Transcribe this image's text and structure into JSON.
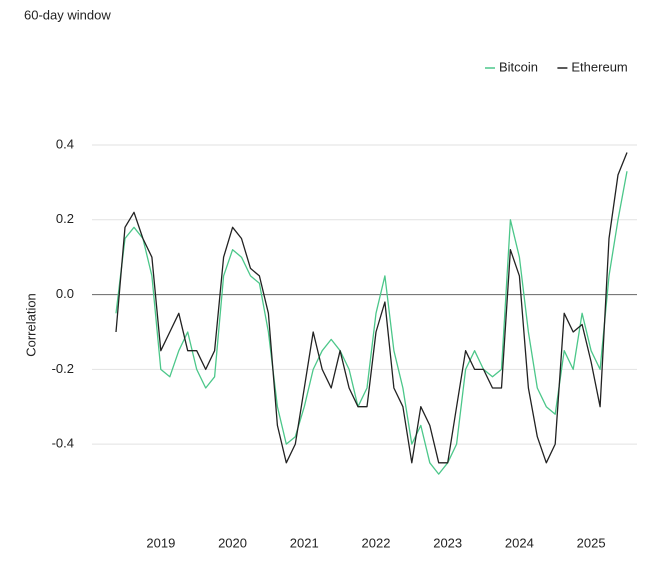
{
  "chart_data": {
    "type": "line",
    "subtitle": "60-day window",
    "y_label": "Correlation",
    "x": [
      2018.375,
      2018.5,
      2018.625,
      2018.75,
      2018.875,
      2019.0,
      2019.125,
      2019.25,
      2019.375,
      2019.5,
      2019.625,
      2019.75,
      2019.875,
      2020.0,
      2020.125,
      2020.25,
      2020.375,
      2020.5,
      2020.625,
      2020.75,
      2020.875,
      2021.0,
      2021.125,
      2021.25,
      2021.375,
      2021.5,
      2021.625,
      2021.75,
      2021.875,
      2022.0,
      2022.125,
      2022.25,
      2022.375,
      2022.5,
      2022.625,
      2022.75,
      2022.875,
      2023.0,
      2023.125,
      2023.25,
      2023.375,
      2023.5,
      2023.625,
      2023.75,
      2023.875,
      2024.0,
      2024.125,
      2024.25,
      2024.375,
      2024.5,
      2024.625,
      2024.75,
      2024.875,
      2025.0,
      2025.125,
      2025.25,
      2025.375,
      2025.5
    ],
    "series": [
      {
        "name": "Bitcoin",
        "color": "#4cc78a",
        "values": [
          -0.05,
          0.15,
          0.18,
          0.15,
          0.05,
          -0.2,
          -0.22,
          -0.15,
          -0.1,
          -0.2,
          -0.25,
          -0.22,
          0.05,
          0.12,
          0.1,
          0.05,
          0.03,
          -0.1,
          -0.3,
          -0.4,
          -0.38,
          -0.3,
          -0.2,
          -0.15,
          -0.12,
          -0.15,
          -0.2,
          -0.3,
          -0.25,
          -0.05,
          0.05,
          -0.15,
          -0.25,
          -0.4,
          -0.35,
          -0.45,
          -0.48,
          -0.45,
          -0.4,
          -0.2,
          -0.15,
          -0.2,
          -0.22,
          -0.2,
          0.2,
          0.1,
          -0.1,
          -0.25,
          -0.3,
          -0.32,
          -0.15,
          -0.2,
          -0.05,
          -0.15,
          -0.2,
          0.05,
          0.2,
          0.33
        ]
      },
      {
        "name": "Ethereum",
        "color": "#222222",
        "values": [
          -0.1,
          0.18,
          0.22,
          0.15,
          0.1,
          -0.15,
          -0.1,
          -0.05,
          -0.15,
          -0.15,
          -0.2,
          -0.15,
          0.1,
          0.18,
          0.15,
          0.07,
          0.05,
          -0.05,
          -0.35,
          -0.45,
          -0.4,
          -0.25,
          -0.1,
          -0.2,
          -0.25,
          -0.15,
          -0.25,
          -0.3,
          -0.3,
          -0.1,
          -0.02,
          -0.25,
          -0.3,
          -0.45,
          -0.3,
          -0.35,
          -0.45,
          -0.45,
          -0.3,
          -0.15,
          -0.2,
          -0.2,
          -0.25,
          -0.25,
          0.12,
          0.05,
          -0.25,
          -0.38,
          -0.45,
          -0.4,
          -0.05,
          -0.1,
          -0.08,
          -0.18,
          -0.3,
          0.15,
          0.32,
          0.38
        ]
      }
    ],
    "xlim": [
      2018.04,
      2025.64
    ],
    "xticks": [
      2019,
      2020,
      2021,
      2022,
      2023,
      2024,
      2025
    ],
    "ylim": [
      -0.62,
      0.45
    ],
    "yticks": [
      0.4,
      0.2,
      {
        "value": 0,
        "label": "0.0"
      },
      -0.2,
      -0.4
    ],
    "grid": true,
    "legend": "top-right"
  }
}
